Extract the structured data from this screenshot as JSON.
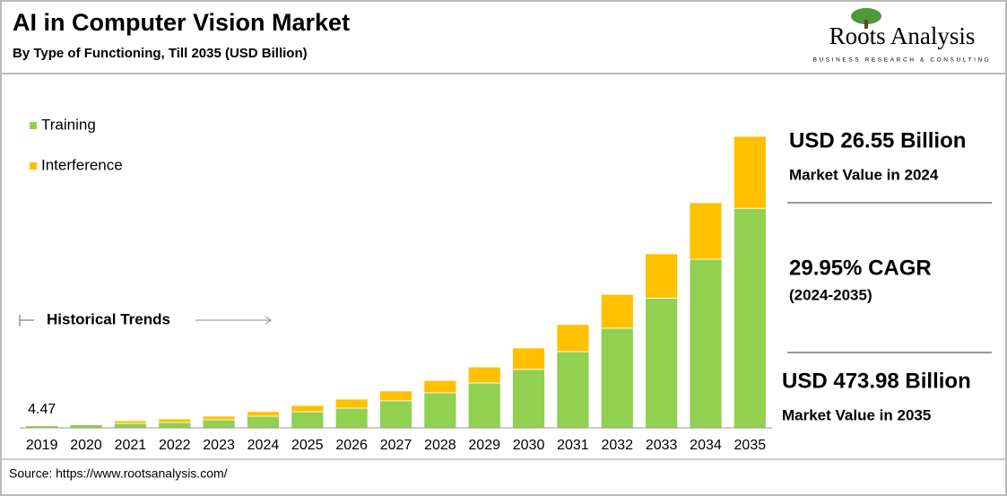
{
  "chart_data": {
    "type": "stacked_bar",
    "title": "AI in Computer Vision Market",
    "subtitle": "By Type of Functioning, Till 2035 (USD Billion)",
    "categories": [
      "2019",
      "2020",
      "2021",
      "2022",
      "2023",
      "2024",
      "2025",
      "2026",
      "2027",
      "2028",
      "2029",
      "2030",
      "2031",
      "2032",
      "2033",
      "2034",
      "2035"
    ],
    "series": [
      {
        "name": "Training",
        "color": "#92d050",
        "values": [
          3.5,
          5,
          7.3,
          8.7,
          13,
          19,
          26.2,
          32,
          44,
          57,
          73,
          95,
          124,
          162,
          211,
          274,
          357
        ]
      },
      {
        "name": "Interference",
        "color": "#ffc000",
        "values": [
          0.97,
          1,
          4.4,
          5.9,
          6,
          7.55,
          10.3,
          14.7,
          16,
          20,
          26,
          35,
          44,
          55,
          72,
          92,
          116.98
        ]
      }
    ],
    "first_bar_label": "4.47",
    "annotation": "Historical Trends",
    "source": "Source: https://www.rootsanalysis.com/",
    "logo": {
      "name": "Roots Analysis",
      "tagline": "BUSINESS RESEARCH & CONSULTING"
    },
    "highlights": [
      {
        "value": "USD 26.55 Billion",
        "label": "Market Value in 2024"
      },
      {
        "value": "29.95% CAGR",
        "label": "(2024-2035)"
      },
      {
        "value": "USD 473.98 Billion",
        "label": "Market Value in 2035"
      }
    ]
  }
}
